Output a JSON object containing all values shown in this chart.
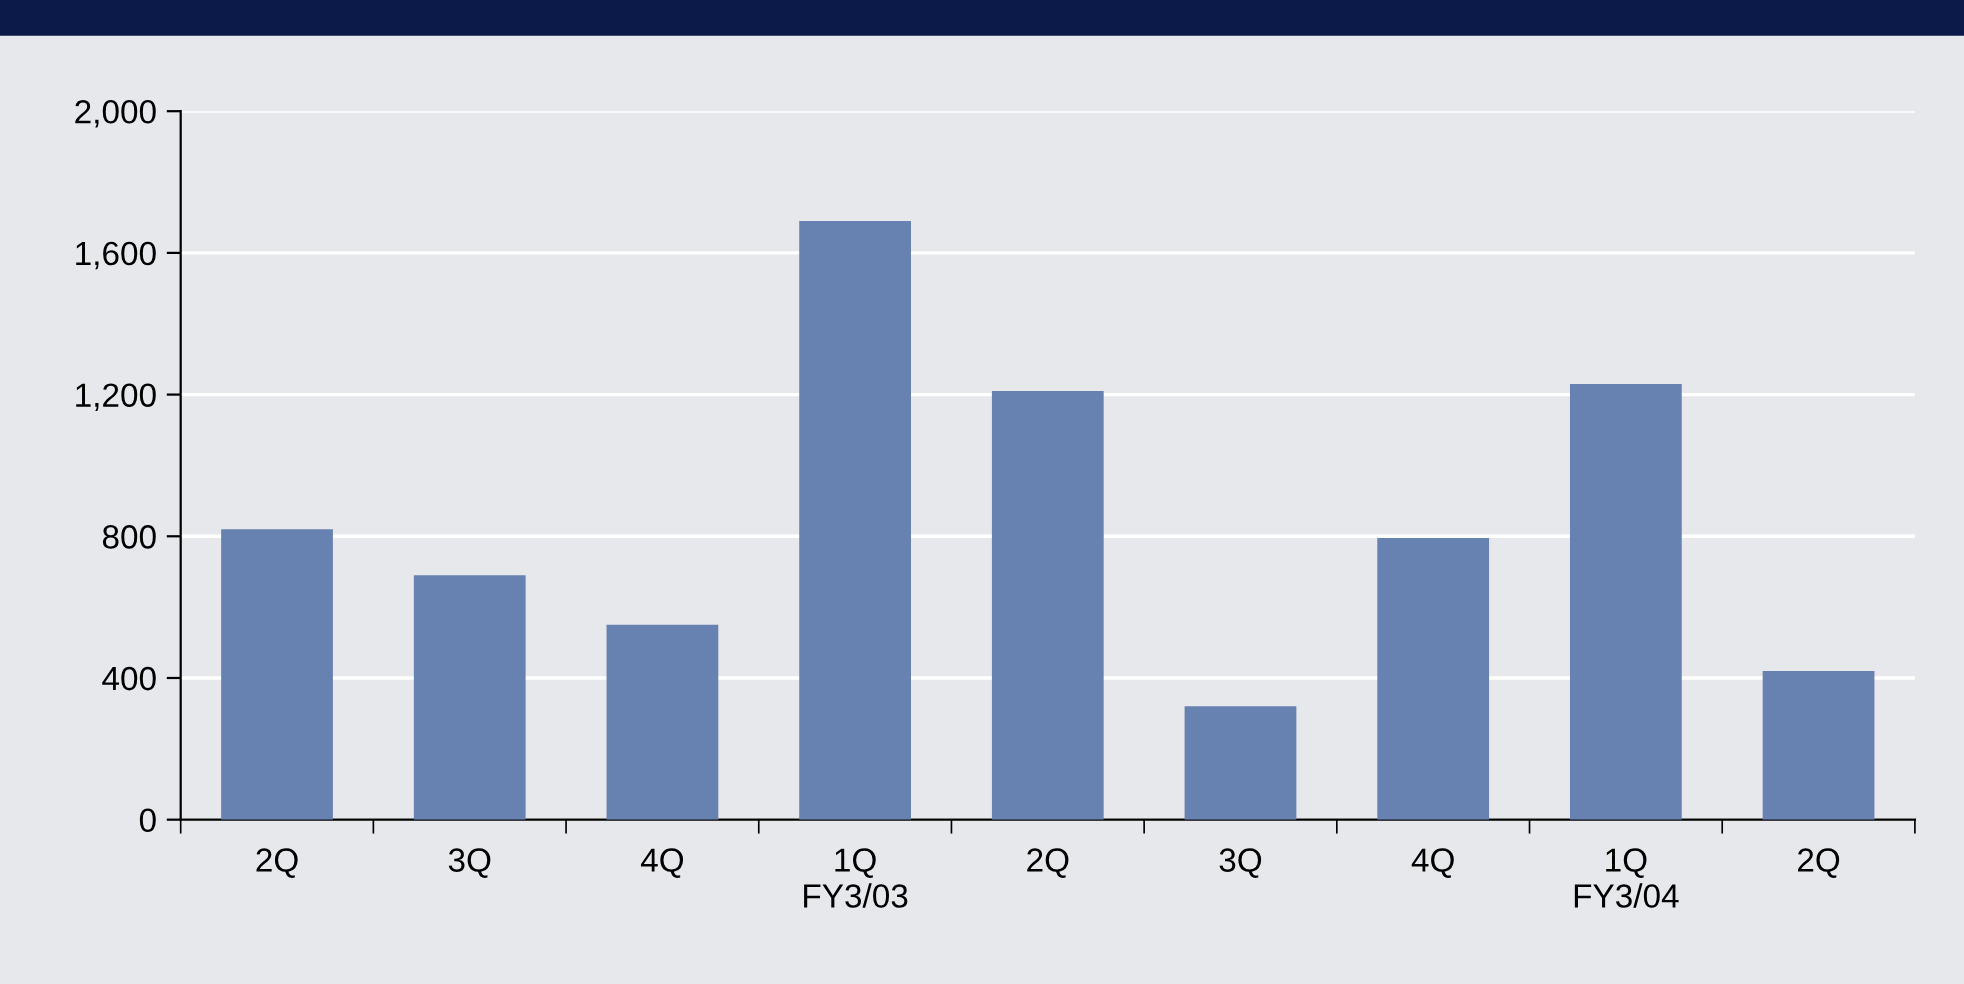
{
  "chart_data": {
    "type": "bar",
    "categories": [
      "2Q",
      "3Q",
      "4Q",
      "1Q\nFY3/03",
      "2Q",
      "3Q",
      "4Q",
      "1Q\nFY3/04",
      "2Q"
    ],
    "values": [
      820,
      690,
      550,
      1690,
      1210,
      320,
      795,
      1230,
      420
    ],
    "color": "#6781b0",
    "ylim": [
      0,
      2000
    ],
    "yticks": [
      0,
      400,
      800,
      {
        "value": 1200,
        "label": "1,200"
      },
      {
        "value": 1600,
        "label": "1,600"
      },
      {
        "value": 2000,
        "label": "2,000"
      }
    ],
    "grid": "y"
  }
}
